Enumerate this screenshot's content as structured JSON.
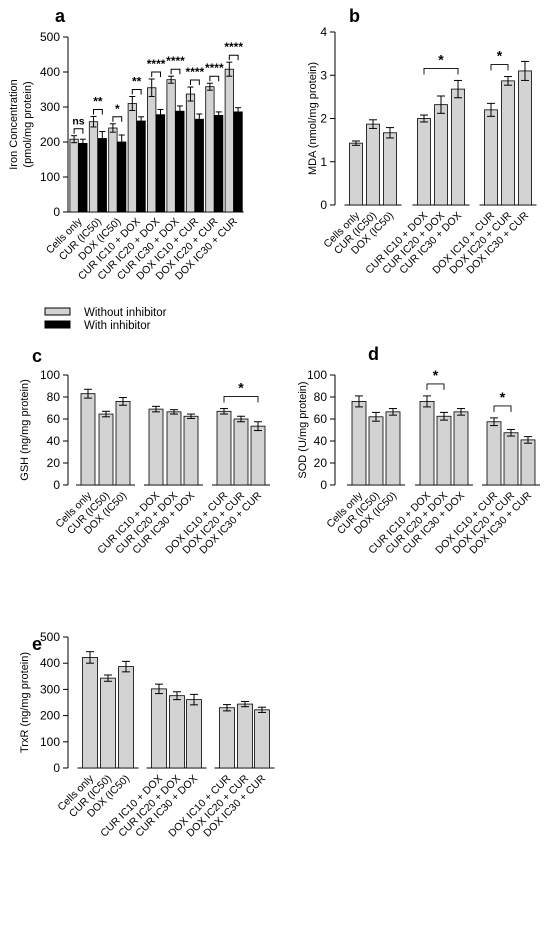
{
  "legend": {
    "without_label": "Without inhibitor",
    "with_label": "With inhibitor",
    "without_color": "#d3d3d3",
    "with_color": "#000000"
  },
  "colors": {
    "bar": "#d3d3d3",
    "bar_stroke": "#000000",
    "axis": "#000000"
  },
  "chart_data": [
    {
      "panel": "a",
      "type": "bar",
      "ylabel_lines": [
        "Iron Concentration",
        "(pmol/mg protein)"
      ],
      "ylim": [
        0,
        500
      ],
      "yticks": [
        0,
        100,
        200,
        300,
        400,
        500
      ],
      "categories": [
        "Cells only",
        "CUR (IC50)",
        "DOX (IC50)",
        "CUR IC10 + DOX",
        "CUR IC20 + DOX",
        "CUR IC30 + DOX",
        "DOX IC10 + CUR",
        "DOX IC20 + CUR",
        "DOX IC30 + CUR"
      ],
      "series": [
        {
          "name": "Without inhibitor",
          "values": [
            208,
            258,
            240,
            310,
            355,
            378,
            337,
            358,
            408
          ],
          "errors": [
            10,
            15,
            12,
            20,
            25,
            10,
            20,
            10,
            20
          ]
        },
        {
          "name": "With inhibitor",
          "values": [
            196,
            210,
            200,
            260,
            278,
            288,
            265,
            276,
            286
          ],
          "errors": [
            12,
            20,
            20,
            12,
            15,
            15,
            15,
            10,
            12
          ]
        }
      ],
      "significance": [
        "ns",
        "**",
        "*",
        "**",
        "****",
        "****",
        "****",
        "****",
        "****"
      ]
    },
    {
      "panel": "b",
      "type": "bar",
      "ylabel_lines": [
        "MDA (nmol/mg protein)"
      ],
      "ylim": [
        0,
        4
      ],
      "yticks": [
        0,
        1,
        2,
        3,
        4
      ],
      "categories": [
        "Cells only",
        "CUR (IC50)",
        "DOX (IC50)",
        "CUR IC10 + DOX",
        "CUR IC20 + DOX",
        "CUR IC30 + DOX",
        "DOX IC10 + CUR",
        "DOX IC20 + CUR",
        "DOX IC30 + CUR"
      ],
      "values": [
        1.43,
        1.87,
        1.67,
        2.0,
        2.32,
        2.68,
        2.2,
        2.87,
        3.1
      ],
      "errors": [
        0.05,
        0.1,
        0.12,
        0.08,
        0.2,
        0.2,
        0.15,
        0.1,
        0.22
      ],
      "groups": [
        [
          0,
          2
        ],
        [
          3,
          5
        ],
        [
          6,
          8
        ]
      ],
      "brackets": [
        {
          "from": 3,
          "to": 5,
          "label": "*"
        },
        {
          "from": 6,
          "to": 7,
          "label": "*"
        }
      ]
    },
    {
      "panel": "c",
      "type": "bar",
      "ylabel_lines": [
        "GSH (ng/mg protein)"
      ],
      "ylim": [
        0,
        100
      ],
      "yticks": [
        0,
        20,
        40,
        60,
        80,
        100
      ],
      "categories": [
        "Cells only",
        "CUR (IC50)",
        "DOX (IC50)",
        "CUR IC10 + DOX",
        "CUR IC20 + DOX",
        "CUR IC30 + DOX",
        "DOX IC10 + CUR",
        "DOX IC20 + CUR",
        "DOX IC30 + CUR"
      ],
      "values": [
        83,
        64.5,
        76,
        69,
        66.5,
        62.5,
        67,
        60,
        53.5
      ],
      "errors": [
        4,
        2.5,
        3.5,
        2.5,
        2,
        2,
        2.5,
        2.5,
        4
      ],
      "groups": [
        [
          0,
          2
        ],
        [
          3,
          5
        ],
        [
          6,
          8
        ]
      ],
      "brackets": [
        {
          "from": 6,
          "to": 8,
          "label": "*"
        }
      ]
    },
    {
      "panel": "d",
      "type": "bar",
      "ylabel_lines": [
        "SOD (U/mg protein)"
      ],
      "ylim": [
        0,
        100
      ],
      "yticks": [
        0,
        20,
        40,
        60,
        80,
        100
      ],
      "categories": [
        "Cells only",
        "CUR (IC50)",
        "DOX (IC50)",
        "CUR IC10 + DOX",
        "CUR IC20 + DOX",
        "CUR IC30 + DOX",
        "DOX IC10 + CUR",
        "DOX IC20 + CUR",
        "DOX IC30 + CUR"
      ],
      "values": [
        76,
        62,
        66.5,
        76,
        62.5,
        66.5,
        57.5,
        47.5,
        41
      ],
      "errors": [
        5,
        4,
        3,
        5,
        3.5,
        3,
        3.5,
        3,
        3
      ],
      "groups": [
        [
          0,
          2
        ],
        [
          3,
          5
        ],
        [
          6,
          8
        ]
      ],
      "brackets": [
        {
          "from": 3,
          "to": 4,
          "label": "*"
        },
        {
          "from": 6,
          "to": 7,
          "label": "*"
        }
      ]
    },
    {
      "panel": "e",
      "type": "bar",
      "ylabel_lines": [
        "TrxR (ng/mg protein)"
      ],
      "ylim": [
        0,
        500
      ],
      "yticks": [
        0,
        100,
        200,
        300,
        400,
        500
      ],
      "categories": [
        "Cells only",
        "CUR (IC50)",
        "DOX (IC50)",
        "CUR IC10 + DOX",
        "CUR IC20 + DOX",
        "CUR IC30 + DOX",
        "DOX IC10 + CUR",
        "DOX IC20 + CUR",
        "DOX IC30 + CUR"
      ],
      "values": [
        422,
        343,
        387,
        302,
        276,
        261,
        230,
        244,
        222
      ],
      "errors": [
        22,
        12,
        20,
        18,
        15,
        20,
        12,
        10,
        10
      ],
      "groups": [
        [
          0,
          2
        ],
        [
          3,
          5
        ],
        [
          6,
          8
        ]
      ],
      "brackets": []
    }
  ]
}
